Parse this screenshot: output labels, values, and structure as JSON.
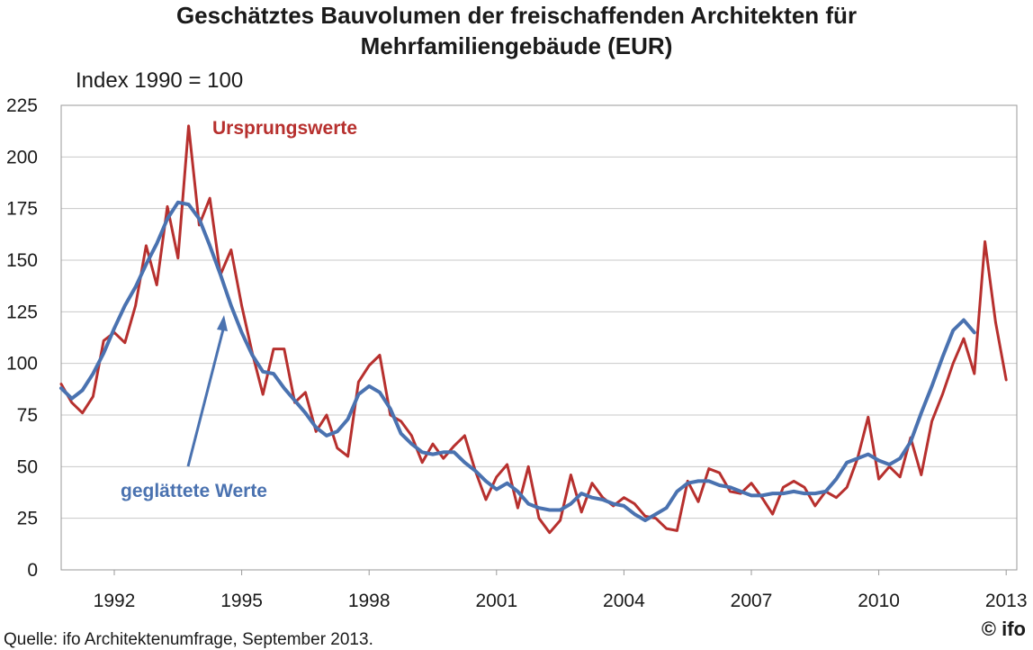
{
  "chart_data": {
    "type": "line",
    "title_line1": "Geschätztes Bauvolumen der freischaffenden Architekten für",
    "title_line2": "Mehrfamiliengebäude (EUR)",
    "subtitle": "Index 1990 = 100",
    "source": "Quelle: ifo Architektenumfrage, September 2013.",
    "logo": "© ifo",
    "ylim": [
      0,
      225
    ],
    "yticks": [
      0,
      25,
      50,
      75,
      100,
      125,
      150,
      175,
      200,
      225
    ],
    "xlim": [
      1990.75,
      2013.25
    ],
    "xticks": [
      1992,
      1995,
      1998,
      2001,
      2004,
      2007,
      2010,
      2013
    ],
    "grid": true,
    "colors": {
      "original": "#b7302e",
      "smoothed": "#4a72b0",
      "grid": "#c8c8c8"
    },
    "series": [
      {
        "name": "Ursprungswerte",
        "x": [
          1990.75,
          1991.0,
          1991.25,
          1991.5,
          1991.75,
          1992.0,
          1992.25,
          1992.5,
          1992.75,
          1993.0,
          1993.25,
          1993.5,
          1993.75,
          1994.0,
          1994.25,
          1994.5,
          1994.75,
          1995.0,
          1995.25,
          1995.5,
          1995.75,
          1996.0,
          1996.25,
          1996.5,
          1996.75,
          1997.0,
          1997.25,
          1997.5,
          1997.75,
          1998.0,
          1998.25,
          1998.5,
          1998.75,
          1999.0,
          1999.25,
          1999.5,
          1999.75,
          2000.0,
          2000.25,
          2000.5,
          2000.75,
          2001.0,
          2001.25,
          2001.5,
          2001.75,
          2002.0,
          2002.25,
          2002.5,
          2002.75,
          2003.0,
          2003.25,
          2003.5,
          2003.75,
          2004.0,
          2004.25,
          2004.5,
          2004.75,
          2005.0,
          2005.25,
          2005.5,
          2005.75,
          2006.0,
          2006.25,
          2006.5,
          2006.75,
          2007.0,
          2007.25,
          2007.5,
          2007.75,
          2008.0,
          2008.25,
          2008.5,
          2008.75,
          2009.0,
          2009.25,
          2009.5,
          2009.75,
          2010.0,
          2010.25,
          2010.5,
          2010.75,
          2011.0,
          2011.25,
          2011.5,
          2011.75,
          2012.0,
          2012.25,
          2012.5,
          2012.75,
          2013.0
        ],
        "values": [
          90,
          81,
          76,
          84,
          111,
          115,
          110,
          128,
          157,
          138,
          176,
          151,
          215,
          167,
          180,
          143,
          155,
          128,
          105,
          85,
          107,
          107,
          81,
          86,
          67,
          75,
          59,
          55,
          91,
          99,
          104,
          75,
          72,
          65,
          52,
          61,
          54,
          60,
          65,
          48,
          34,
          45,
          51,
          30,
          50,
          25,
          18,
          24,
          46,
          28,
          42,
          35,
          31,
          35,
          32,
          26,
          25,
          20,
          19,
          43,
          33,
          49,
          47,
          38,
          37,
          42,
          35,
          27,
          40,
          43,
          40,
          31,
          38,
          35,
          40,
          54,
          74,
          44,
          50,
          45,
          64,
          46,
          72,
          85,
          100,
          112,
          95,
          159,
          120,
          92
        ]
      },
      {
        "name": "geglättete Werte",
        "x": [
          1990.75,
          1991.0,
          1991.25,
          1991.5,
          1991.75,
          1992.0,
          1992.25,
          1992.5,
          1992.75,
          1993.0,
          1993.25,
          1993.5,
          1993.75,
          1994.0,
          1994.25,
          1994.5,
          1994.75,
          1995.0,
          1995.25,
          1995.5,
          1995.75,
          1996.0,
          1996.25,
          1996.5,
          1996.75,
          1997.0,
          1997.25,
          1997.5,
          1997.75,
          1998.0,
          1998.25,
          1998.5,
          1998.75,
          1999.0,
          1999.25,
          1999.5,
          1999.75,
          2000.0,
          2000.25,
          2000.5,
          2000.75,
          2001.0,
          2001.25,
          2001.5,
          2001.75,
          2002.0,
          2002.25,
          2002.5,
          2002.75,
          2003.0,
          2003.25,
          2003.5,
          2003.75,
          2004.0,
          2004.25,
          2004.5,
          2004.75,
          2005.0,
          2005.25,
          2005.5,
          2005.75,
          2006.0,
          2006.25,
          2006.5,
          2006.75,
          2007.0,
          2007.25,
          2007.5,
          2007.75,
          2008.0,
          2008.25,
          2008.5,
          2008.75,
          2009.0,
          2009.25,
          2009.5,
          2009.75,
          2010.0,
          2010.25,
          2010.5,
          2010.75,
          2011.0,
          2011.25,
          2011.5,
          2011.75,
          2012.0,
          2012.25
        ],
        "values": [
          88,
          83,
          87,
          95,
          105,
          117,
          128,
          137,
          148,
          158,
          170,
          178,
          177,
          170,
          157,
          143,
          128,
          115,
          104,
          96,
          95,
          88,
          82,
          76,
          69,
          65,
          67,
          73,
          85,
          89,
          86,
          78,
          66,
          61,
          57,
          56,
          57,
          57,
          52,
          48,
          43,
          39,
          42,
          38,
          32,
          30,
          29,
          29,
          32,
          37,
          35,
          34,
          32,
          31,
          27,
          24,
          27,
          30,
          38,
          42,
          43,
          43,
          41,
          40,
          38,
          36,
          36,
          37,
          37,
          38,
          37,
          37,
          38,
          44,
          52,
          54,
          56,
          53,
          51,
          54,
          62,
          76,
          89,
          103,
          116,
          121,
          115
        ]
      }
    ],
    "annotations": [
      {
        "text": "Ursprungswerte",
        "series": 0
      },
      {
        "text": "geglättete Werte",
        "series": 1
      }
    ]
  }
}
